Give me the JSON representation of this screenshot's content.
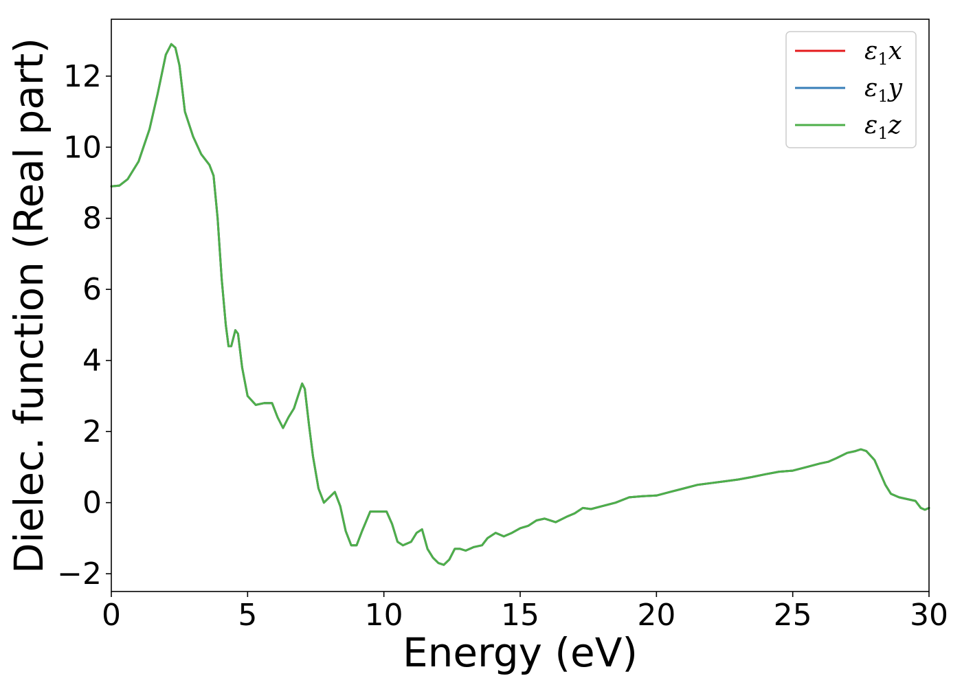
{
  "chart_data": {
    "type": "line",
    "xlabel": "Energy (eV)",
    "ylabel": "Dielec. function (Real part)",
    "xlim": [
      0,
      30
    ],
    "ylim": [
      -2.5,
      13.6
    ],
    "xticks": [
      0,
      5,
      10,
      15,
      20,
      25,
      30
    ],
    "yticks": [
      -2,
      0,
      2,
      4,
      6,
      8,
      10,
      12
    ],
    "ytick_labels": [
      "−2",
      "0",
      "2",
      "4",
      "6",
      "8",
      "10",
      "12"
    ],
    "grid": false,
    "legend_position": "top-right",
    "x": [
      0,
      0.3,
      0.6,
      1.0,
      1.4,
      1.7,
      2.0,
      2.2,
      2.35,
      2.5,
      2.7,
      3.0,
      3.3,
      3.6,
      3.75,
      3.9,
      4.05,
      4.2,
      4.3,
      4.4,
      4.55,
      4.65,
      4.8,
      5.0,
      5.3,
      5.6,
      5.9,
      6.1,
      6.3,
      6.5,
      6.7,
      6.85,
      7.0,
      7.1,
      7.25,
      7.4,
      7.6,
      7.8,
      8.0,
      8.2,
      8.4,
      8.6,
      8.8,
      9.0,
      9.2,
      9.5,
      9.8,
      10.1,
      10.3,
      10.5,
      10.7,
      11.0,
      11.2,
      11.4,
      11.6,
      11.8,
      12.0,
      12.2,
      12.4,
      12.6,
      12.8,
      13.0,
      13.3,
      13.6,
      13.8,
      14.1,
      14.4,
      14.7,
      15.0,
      15.3,
      15.6,
      15.9,
      16.3,
      16.7,
      17.0,
      17.3,
      17.6,
      18.0,
      18.5,
      19.0,
      19.5,
      20.0,
      20.5,
      21.0,
      21.5,
      22.0,
      22.5,
      23.0,
      23.5,
      24.0,
      24.5,
      25.0,
      25.5,
      26.0,
      26.3,
      26.6,
      27.0,
      27.3,
      27.5,
      27.7,
      28.0,
      28.2,
      28.4,
      28.6,
      28.9,
      29.2,
      29.5,
      29.7,
      29.85,
      30.0
    ],
    "series": [
      {
        "name": "ε₁x",
        "color": "#e41a1c",
        "values": [
          8.9,
          8.92,
          9.1,
          9.6,
          10.5,
          11.5,
          12.6,
          12.9,
          12.8,
          12.3,
          11.0,
          10.3,
          9.8,
          9.5,
          9.2,
          8.0,
          6.3,
          5.0,
          4.4,
          4.4,
          4.85,
          4.75,
          3.8,
          3.0,
          2.75,
          2.8,
          2.8,
          2.4,
          2.1,
          2.4,
          2.65,
          3.0,
          3.35,
          3.2,
          2.2,
          1.3,
          0.4,
          0.0,
          0.15,
          0.3,
          -0.1,
          -0.8,
          -1.2,
          -1.2,
          -0.8,
          -0.25,
          -0.25,
          -0.25,
          -0.6,
          -1.1,
          -1.2,
          -1.1,
          -0.85,
          -0.75,
          -1.3,
          -1.55,
          -1.7,
          -1.75,
          -1.6,
          -1.3,
          -1.3,
          -1.35,
          -1.25,
          -1.2,
          -1.0,
          -0.85,
          -0.95,
          -0.85,
          -0.72,
          -0.65,
          -0.5,
          -0.45,
          -0.55,
          -0.4,
          -0.3,
          -0.15,
          -0.18,
          -0.1,
          0.0,
          0.15,
          0.18,
          0.2,
          0.3,
          0.4,
          0.5,
          0.55,
          0.6,
          0.65,
          0.72,
          0.8,
          0.87,
          0.9,
          1.0,
          1.1,
          1.15,
          1.25,
          1.4,
          1.45,
          1.5,
          1.45,
          1.2,
          0.85,
          0.5,
          0.25,
          0.15,
          0.1,
          0.05,
          -0.15,
          -0.2,
          -0.15
        ]
      },
      {
        "name": "ε₁y",
        "color": "#377eb8",
        "values": [
          8.9,
          8.92,
          9.1,
          9.6,
          10.5,
          11.5,
          12.6,
          12.9,
          12.8,
          12.3,
          11.0,
          10.3,
          9.8,
          9.5,
          9.2,
          8.0,
          6.3,
          5.0,
          4.4,
          4.4,
          4.85,
          4.75,
          3.8,
          3.0,
          2.75,
          2.8,
          2.8,
          2.4,
          2.1,
          2.4,
          2.65,
          3.0,
          3.35,
          3.2,
          2.2,
          1.3,
          0.4,
          0.0,
          0.15,
          0.3,
          -0.1,
          -0.8,
          -1.2,
          -1.2,
          -0.8,
          -0.25,
          -0.25,
          -0.25,
          -0.6,
          -1.1,
          -1.2,
          -1.1,
          -0.85,
          -0.75,
          -1.3,
          -1.55,
          -1.7,
          -1.75,
          -1.6,
          -1.3,
          -1.3,
          -1.35,
          -1.25,
          -1.2,
          -1.0,
          -0.85,
          -0.95,
          -0.85,
          -0.72,
          -0.65,
          -0.5,
          -0.45,
          -0.55,
          -0.4,
          -0.3,
          -0.15,
          -0.18,
          -0.1,
          0.0,
          0.15,
          0.18,
          0.2,
          0.3,
          0.4,
          0.5,
          0.55,
          0.6,
          0.65,
          0.72,
          0.8,
          0.87,
          0.9,
          1.0,
          1.1,
          1.15,
          1.25,
          1.4,
          1.45,
          1.5,
          1.45,
          1.2,
          0.85,
          0.5,
          0.25,
          0.15,
          0.1,
          0.05,
          -0.15,
          -0.2,
          -0.15
        ]
      },
      {
        "name": "ε₁z",
        "color": "#4daf4a",
        "values": [
          8.9,
          8.92,
          9.1,
          9.6,
          10.5,
          11.5,
          12.6,
          12.9,
          12.8,
          12.3,
          11.0,
          10.3,
          9.8,
          9.5,
          9.2,
          8.0,
          6.3,
          5.0,
          4.4,
          4.4,
          4.85,
          4.75,
          3.8,
          3.0,
          2.75,
          2.8,
          2.8,
          2.4,
          2.1,
          2.4,
          2.65,
          3.0,
          3.35,
          3.2,
          2.2,
          1.3,
          0.4,
          0.0,
          0.15,
          0.3,
          -0.1,
          -0.8,
          -1.2,
          -1.2,
          -0.8,
          -0.25,
          -0.25,
          -0.25,
          -0.6,
          -1.1,
          -1.2,
          -1.1,
          -0.85,
          -0.75,
          -1.3,
          -1.55,
          -1.7,
          -1.75,
          -1.6,
          -1.3,
          -1.3,
          -1.35,
          -1.25,
          -1.2,
          -1.0,
          -0.85,
          -0.95,
          -0.85,
          -0.72,
          -0.65,
          -0.5,
          -0.45,
          -0.55,
          -0.4,
          -0.3,
          -0.15,
          -0.18,
          -0.1,
          0.0,
          0.15,
          0.18,
          0.2,
          0.3,
          0.4,
          0.5,
          0.55,
          0.6,
          0.65,
          0.72,
          0.8,
          0.87,
          0.9,
          1.0,
          1.1,
          1.15,
          1.25,
          1.4,
          1.45,
          1.5,
          1.45,
          1.2,
          0.85,
          0.5,
          0.25,
          0.15,
          0.1,
          0.05,
          -0.15,
          -0.2,
          -0.15
        ]
      }
    ],
    "legend": [
      {
        "base": "ε",
        "sub": "1",
        "tail": "x",
        "color": "#e41a1c"
      },
      {
        "base": "ε",
        "sub": "1",
        "tail": "y",
        "color": "#377eb8"
      },
      {
        "base": "ε",
        "sub": "1",
        "tail": "z",
        "color": "#4daf4a"
      }
    ]
  }
}
